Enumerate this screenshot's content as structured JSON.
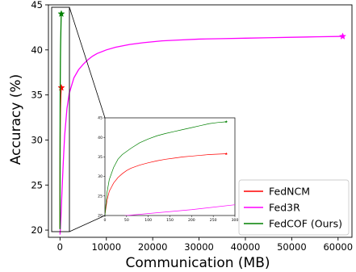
{
  "chart_data": {
    "type": "line",
    "title": "",
    "xlabel": "Communication (MB)",
    "ylabel": "Accuracy (%)",
    "xlim": [
      -2500,
      63000
    ],
    "ylim": [
      19.2,
      45
    ],
    "xticks": [
      0,
      10000,
      20000,
      30000,
      40000,
      50000,
      60000
    ],
    "yticks": [
      20,
      25,
      30,
      35,
      40,
      45
    ],
    "xtick_labels": [
      "0",
      "10000",
      "20000",
      "30000",
      "40000",
      "50000",
      "60000"
    ],
    "ytick_labels": [
      "20",
      "25",
      "30",
      "35",
      "40",
      "45"
    ],
    "grid": false,
    "legend_position": "lower-right",
    "series": [
      {
        "name": "FedNCM",
        "color": "#ff0000",
        "x": [
          0,
          5,
          10,
          20,
          30,
          40,
          50,
          60,
          80,
          100,
          120,
          140,
          160,
          180,
          200,
          220,
          240,
          260,
          280
        ],
        "y": [
          20.2,
          24.0,
          26.2,
          28.3,
          29.7,
          30.7,
          31.5,
          32.1,
          32.9,
          33.5,
          34.0,
          34.4,
          34.7,
          35.0,
          35.2,
          35.4,
          35.6,
          35.7,
          35.8
        ],
        "final_marker": {
          "x": 280,
          "y": 35.8
        }
      },
      {
        "name": "Fed3R",
        "color": "#ff00ff",
        "x": [
          0,
          200,
          400,
          700,
          1000,
          1500,
          2000,
          3000,
          4000,
          5000,
          6000,
          7000,
          8000,
          10000,
          12000,
          15000,
          18000,
          22000,
          26000,
          30000,
          35000,
          40000,
          45000,
          50000,
          55000,
          61000
        ],
        "y": [
          19.5,
          21.5,
          24.0,
          27.5,
          30.5,
          33.5,
          35.2,
          36.9,
          37.8,
          38.4,
          38.9,
          39.3,
          39.6,
          40.0,
          40.3,
          40.6,
          40.8,
          41.0,
          41.1,
          41.2,
          41.25,
          41.3,
          41.35,
          41.4,
          41.45,
          41.5
        ],
        "final_marker": {
          "x": 61000,
          "y": 41.5
        }
      },
      {
        "name": "FedCOF (Ours)",
        "color": "#008000",
        "x": [
          0,
          5,
          10,
          20,
          30,
          40,
          50,
          60,
          80,
          100,
          120,
          140,
          160,
          180,
          200,
          220,
          240,
          260,
          280
        ],
        "y": [
          20.1,
          26.0,
          29.2,
          32.3,
          34.4,
          35.6,
          36.4,
          37.2,
          38.6,
          39.6,
          40.4,
          41.0,
          41.5,
          42.0,
          42.5,
          43.0,
          43.5,
          43.8,
          44.0
        ],
        "final_marker": {
          "x": 280,
          "y": 44.0
        }
      }
    ],
    "inset": {
      "xlim": [
        0,
        300
      ],
      "ylim": [
        20,
        45
      ],
      "xticks": [
        0,
        50,
        100,
        150,
        200,
        250,
        300
      ],
      "yticks": [
        20,
        25,
        30,
        35,
        40,
        45
      ],
      "xtick_labels": [
        "0",
        "50",
        "100",
        "150",
        "200",
        "250",
        "300"
      ],
      "ytick_labels": [
        "20",
        "25",
        "30",
        "35",
        "40",
        "45"
      ]
    }
  }
}
